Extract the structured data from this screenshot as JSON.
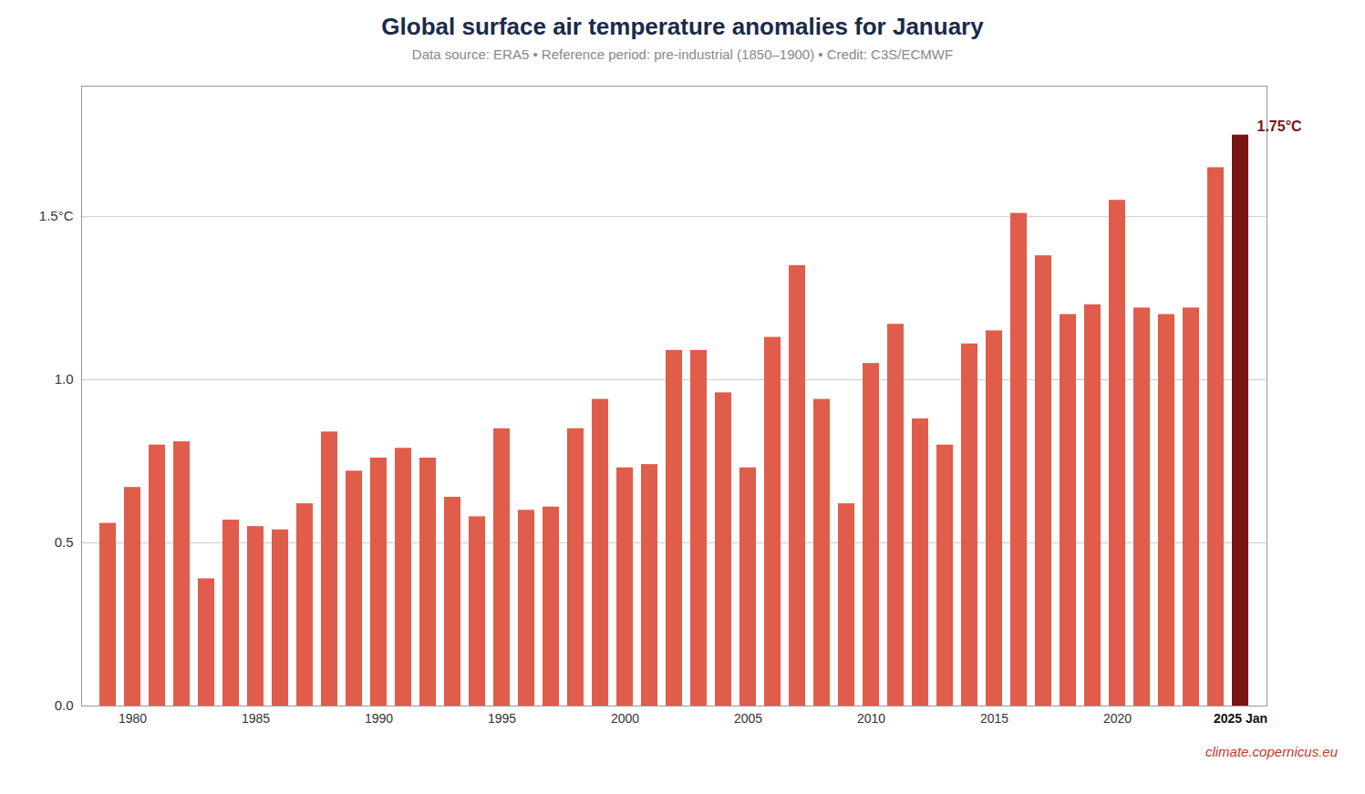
{
  "chart_data": {
    "type": "bar",
    "title": "Global surface air temperature anomalies for January",
    "subtitle": "Data source: ERA5 • Reference period: pre-industrial (1850–1900) • Credit: C3S/ECMWF",
    "caption": "climate.copernicus.eu",
    "categories": [
      null,
      "1980",
      null,
      null,
      null,
      null,
      "1985",
      null,
      null,
      null,
      null,
      "1990",
      null,
      null,
      null,
      null,
      "1995",
      null,
      null,
      null,
      null,
      "2000",
      null,
      null,
      null,
      null,
      "2005",
      null,
      null,
      null,
      null,
      "2010",
      null,
      null,
      null,
      null,
      "2015",
      null,
      null,
      null,
      null,
      "2020",
      null,
      null,
      null,
      null,
      "2025 Jan"
    ],
    "values": [
      0.56,
      0.67,
      0.8,
      0.81,
      0.39,
      0.57,
      0.55,
      0.54,
      0.62,
      0.84,
      0.72,
      0.76,
      0.79,
      0.76,
      0.64,
      0.58,
      0.85,
      0.6,
      0.61,
      0.85,
      0.94,
      0.73,
      0.74,
      1.09,
      1.09,
      0.96,
      0.73,
      1.13,
      1.35,
      0.94,
      0.62,
      1.05,
      1.17,
      0.88,
      0.8,
      1.11,
      1.15,
      1.51,
      1.38,
      1.2,
      1.23,
      1.55,
      1.22,
      1.2,
      1.22,
      1.65,
      1.75
    ],
    "colors": [
      "#e05c4b",
      "#e05c4b",
      "#e05c4b",
      "#e05c4b",
      "#e05c4b",
      "#e05c4b",
      "#e05c4b",
      "#e05c4b",
      "#e05c4b",
      "#e05c4b",
      "#e05c4b",
      "#e05c4b",
      "#e05c4b",
      "#e05c4b",
      "#e05c4b",
      "#e05c4b",
      "#e05c4b",
      "#e05c4b",
      "#e05c4b",
      "#e05c4b",
      "#e05c4b",
      "#e05c4b",
      "#e05c4b",
      "#e05c4b",
      "#e05c4b",
      "#e05c4b",
      "#e05c4b",
      "#e05c4b",
      "#e05c4b",
      "#e05c4b",
      "#e05c4b",
      "#e05c4b",
      "#e05c4b",
      "#e05c4b",
      "#e05c4b",
      "#e05c4b",
      "#e05c4b",
      "#e05c4b",
      "#e05c4b",
      "#e05c4b",
      "#e05c4b",
      "#e05c4b",
      "#e05c4b",
      "#e05c4b",
      "#e05c4b",
      "#e05c4b",
      "#7a1515"
    ],
    "ylim": [
      0.0,
      1.9
    ],
    "yticks": [
      {
        "value": 0.0,
        "label": "0.0"
      },
      0.5,
      {
        "value": 1.0,
        "label": "1.0"
      },
      {
        "value": 1.5,
        "label": "1.5°C"
      }
    ],
    "grid": true,
    "annotations": [
      {
        "text": "1.75°C",
        "category": "2025 Jan",
        "value": 1.75,
        "color": "#7a1515"
      }
    ]
  }
}
